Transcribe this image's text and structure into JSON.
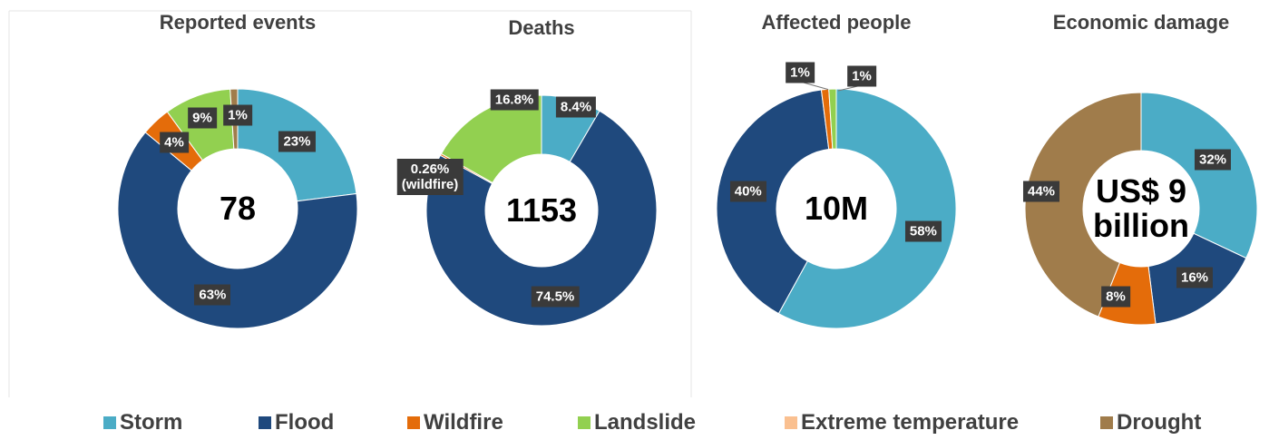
{
  "legend": [
    {
      "name": "Storm",
      "color": "#4bacc6"
    },
    {
      "name": "Flood",
      "color": "#1f497d"
    },
    {
      "name": "Wildfire",
      "color": "#e46c0a"
    },
    {
      "name": "Landslide",
      "color": "#92d050"
    },
    {
      "name": "Extreme temperature",
      "color": "#fac090"
    },
    {
      "name": "Drought",
      "color": "#a07c4b"
    }
  ],
  "chart_data": [
    {
      "type": "donut",
      "title": "Reported events",
      "center_label": "78",
      "categories": [
        "Storm",
        "Flood",
        "Wildfire",
        "Landslide",
        "Drought"
      ],
      "values": [
        23,
        63,
        4,
        9,
        1
      ],
      "value_labels": [
        "23%",
        "63%",
        "4%",
        "9%",
        "1%"
      ]
    },
    {
      "type": "donut",
      "title": "Deaths",
      "center_label": "1153",
      "categories": [
        "Storm",
        "Flood",
        "Wildfire",
        "Landslide"
      ],
      "values": [
        8.4,
        74.5,
        0.26,
        16.8
      ],
      "value_labels": [
        "8.4%",
        "74.5%",
        "0.26%\n(wildfire)",
        "16.8%"
      ]
    },
    {
      "type": "donut",
      "title": "Affected people",
      "center_label": "10M",
      "categories": [
        "Storm",
        "Flood",
        "Wildfire",
        "Landslide"
      ],
      "values": [
        58,
        40,
        1,
        1
      ],
      "value_labels": [
        "58%",
        "40%",
        "1%",
        "1%"
      ]
    },
    {
      "type": "donut",
      "title": "Economic damage",
      "center_label": "US$ 9\nbillion",
      "categories": [
        "Storm",
        "Flood",
        "Wildfire",
        "Drought"
      ],
      "values": [
        32,
        16,
        8,
        44
      ],
      "value_labels": [
        "32%",
        "16%",
        "8%",
        "44%"
      ]
    }
  ]
}
